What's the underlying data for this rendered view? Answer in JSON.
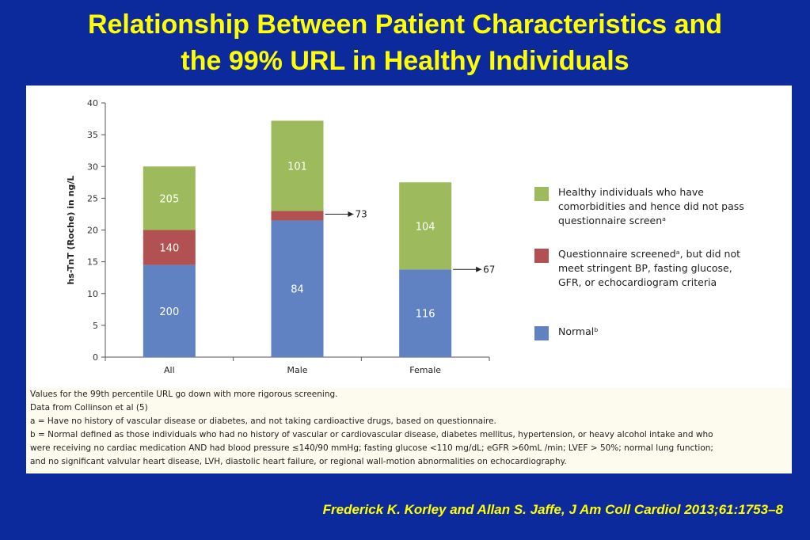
{
  "title_line1": "Relationship Between Patient Characteristics and",
  "title_line2": "the 99% URL in Healthy Individuals",
  "citation": "Frederick K. Korley and Allan S. Jaffe, J Am Coll Cardiol 2013;61:1753–8",
  "colors": {
    "background": "#0d2a9c",
    "title": "#ffff00",
    "normal": "#6082c2",
    "screened": "#b15151",
    "comorbid": "#9dbb5c"
  },
  "chart_data": {
    "type": "bar",
    "stacked": true,
    "categories": [
      "All",
      "Male",
      "Female"
    ],
    "ylabel": "hs-TnT (Roche) in ng/L",
    "ylim": [
      0,
      40
    ],
    "yticks": [
      0,
      5,
      10,
      15,
      20,
      25,
      30,
      35,
      40
    ],
    "grid": false,
    "series": [
      {
        "key": "normal",
        "values": [
          14.5,
          21.5,
          13.8
        ],
        "labels": [
          "200",
          "84",
          "116"
        ]
      },
      {
        "key": "screened",
        "values": [
          5.5,
          1.5,
          0
        ],
        "labels": [
          "140",
          "73",
          "67"
        ]
      },
      {
        "key": "comorbid",
        "values": [
          10.0,
          14.2,
          13.7
        ],
        "labels": [
          "205",
          "101",
          "104"
        ]
      }
    ],
    "arrow_annotations": [
      {
        "category": "Male",
        "y": 22.5,
        "text": "73"
      },
      {
        "category": "Female",
        "y": 13.8,
        "text": "67"
      }
    ],
    "legend": {
      "placement": "right",
      "items": [
        {
          "key": "comorbid",
          "label": "Healthy individuals who have comorbidities and hence did not pass questionnaire screenᵃ"
        },
        {
          "key": "screened",
          "label": "Questionnaire screenedᵃ, but did not meet stringent BP, fasting glucose, GFR, or echocardiogram criteria"
        },
        {
          "key": "normal",
          "label": "Normalᵇ"
        }
      ]
    }
  },
  "notes": [
    "Values for the 99th percentile URL go down with more rigorous screening.",
    "Data from Collinson et al (5)",
    "a = Have no history of vascular disease or diabetes, and not taking cardioactive drugs, based on questionnaire.",
    "b = Normal defined as those individuals who had no history of vascular or cardiovascular disease, diabetes mellitus, hypertension, or heavy alcohol intake and who",
    "were receiving no cardiac medication AND had blood pressure ≤140/90 mmHg; fasting glucose <110 mg/dL; eGFR >60mL /min; LVEF > 50%; normal lung function;",
    "and no significant valvular heart disease, LVH, diastolic heart failure, or regional wall-motion abnormalities on echocardiography."
  ]
}
